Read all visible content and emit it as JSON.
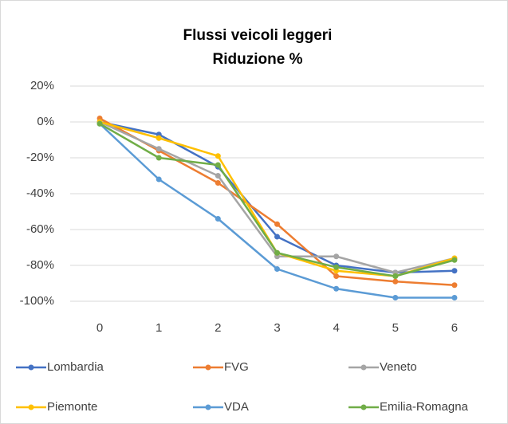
{
  "chart_data": {
    "type": "line",
    "title": "Flussi veicoli leggeri",
    "subtitle": "Riduzione %",
    "x": [
      0,
      1,
      2,
      3,
      4,
      5,
      6
    ],
    "xlim": [
      -0.5,
      6.5
    ],
    "xticks": [
      0,
      1,
      2,
      3,
      4,
      5,
      6
    ],
    "ylim": [
      -100,
      20
    ],
    "yticks": [
      {
        "value": 20,
        "label": "20%"
      },
      {
        "value": 0,
        "label": "0%"
      },
      {
        "value": -20,
        "label": "-20%"
      },
      {
        "value": -40,
        "label": "-40%"
      },
      {
        "value": -60,
        "label": "-60%"
      },
      {
        "value": -80,
        "label": "-80%"
      },
      {
        "value": -100,
        "label": "-100%"
      }
    ],
    "grid": true,
    "legend": "bottom",
    "series": [
      {
        "name": "Lombardia",
        "color": "#4472c4",
        "values": [
          0,
          -7,
          -25,
          -64,
          -80,
          -84,
          -83
        ]
      },
      {
        "name": "FVG",
        "color": "#ed7d31",
        "values": [
          2,
          -16,
          -34,
          -57,
          -86,
          -89,
          -91
        ]
      },
      {
        "name": "Veneto",
        "color": "#a5a5a5",
        "values": [
          0,
          -15,
          -30,
          -75,
          -75,
          -84,
          -76
        ]
      },
      {
        "name": "Piemonte",
        "color": "#ffc000",
        "values": [
          0,
          -9,
          -19,
          -73,
          -83,
          -86,
          -76
        ]
      },
      {
        "name": "VDA",
        "color": "#5b9bd5",
        "values": [
          -1,
          -32,
          -54,
          -82,
          -93,
          -98,
          -98
        ]
      },
      {
        "name": "Emilia-Romagna",
        "color": "#70ad47",
        "values": [
          -1,
          -20,
          -24,
          -73,
          -81,
          -86,
          -77
        ]
      }
    ]
  }
}
